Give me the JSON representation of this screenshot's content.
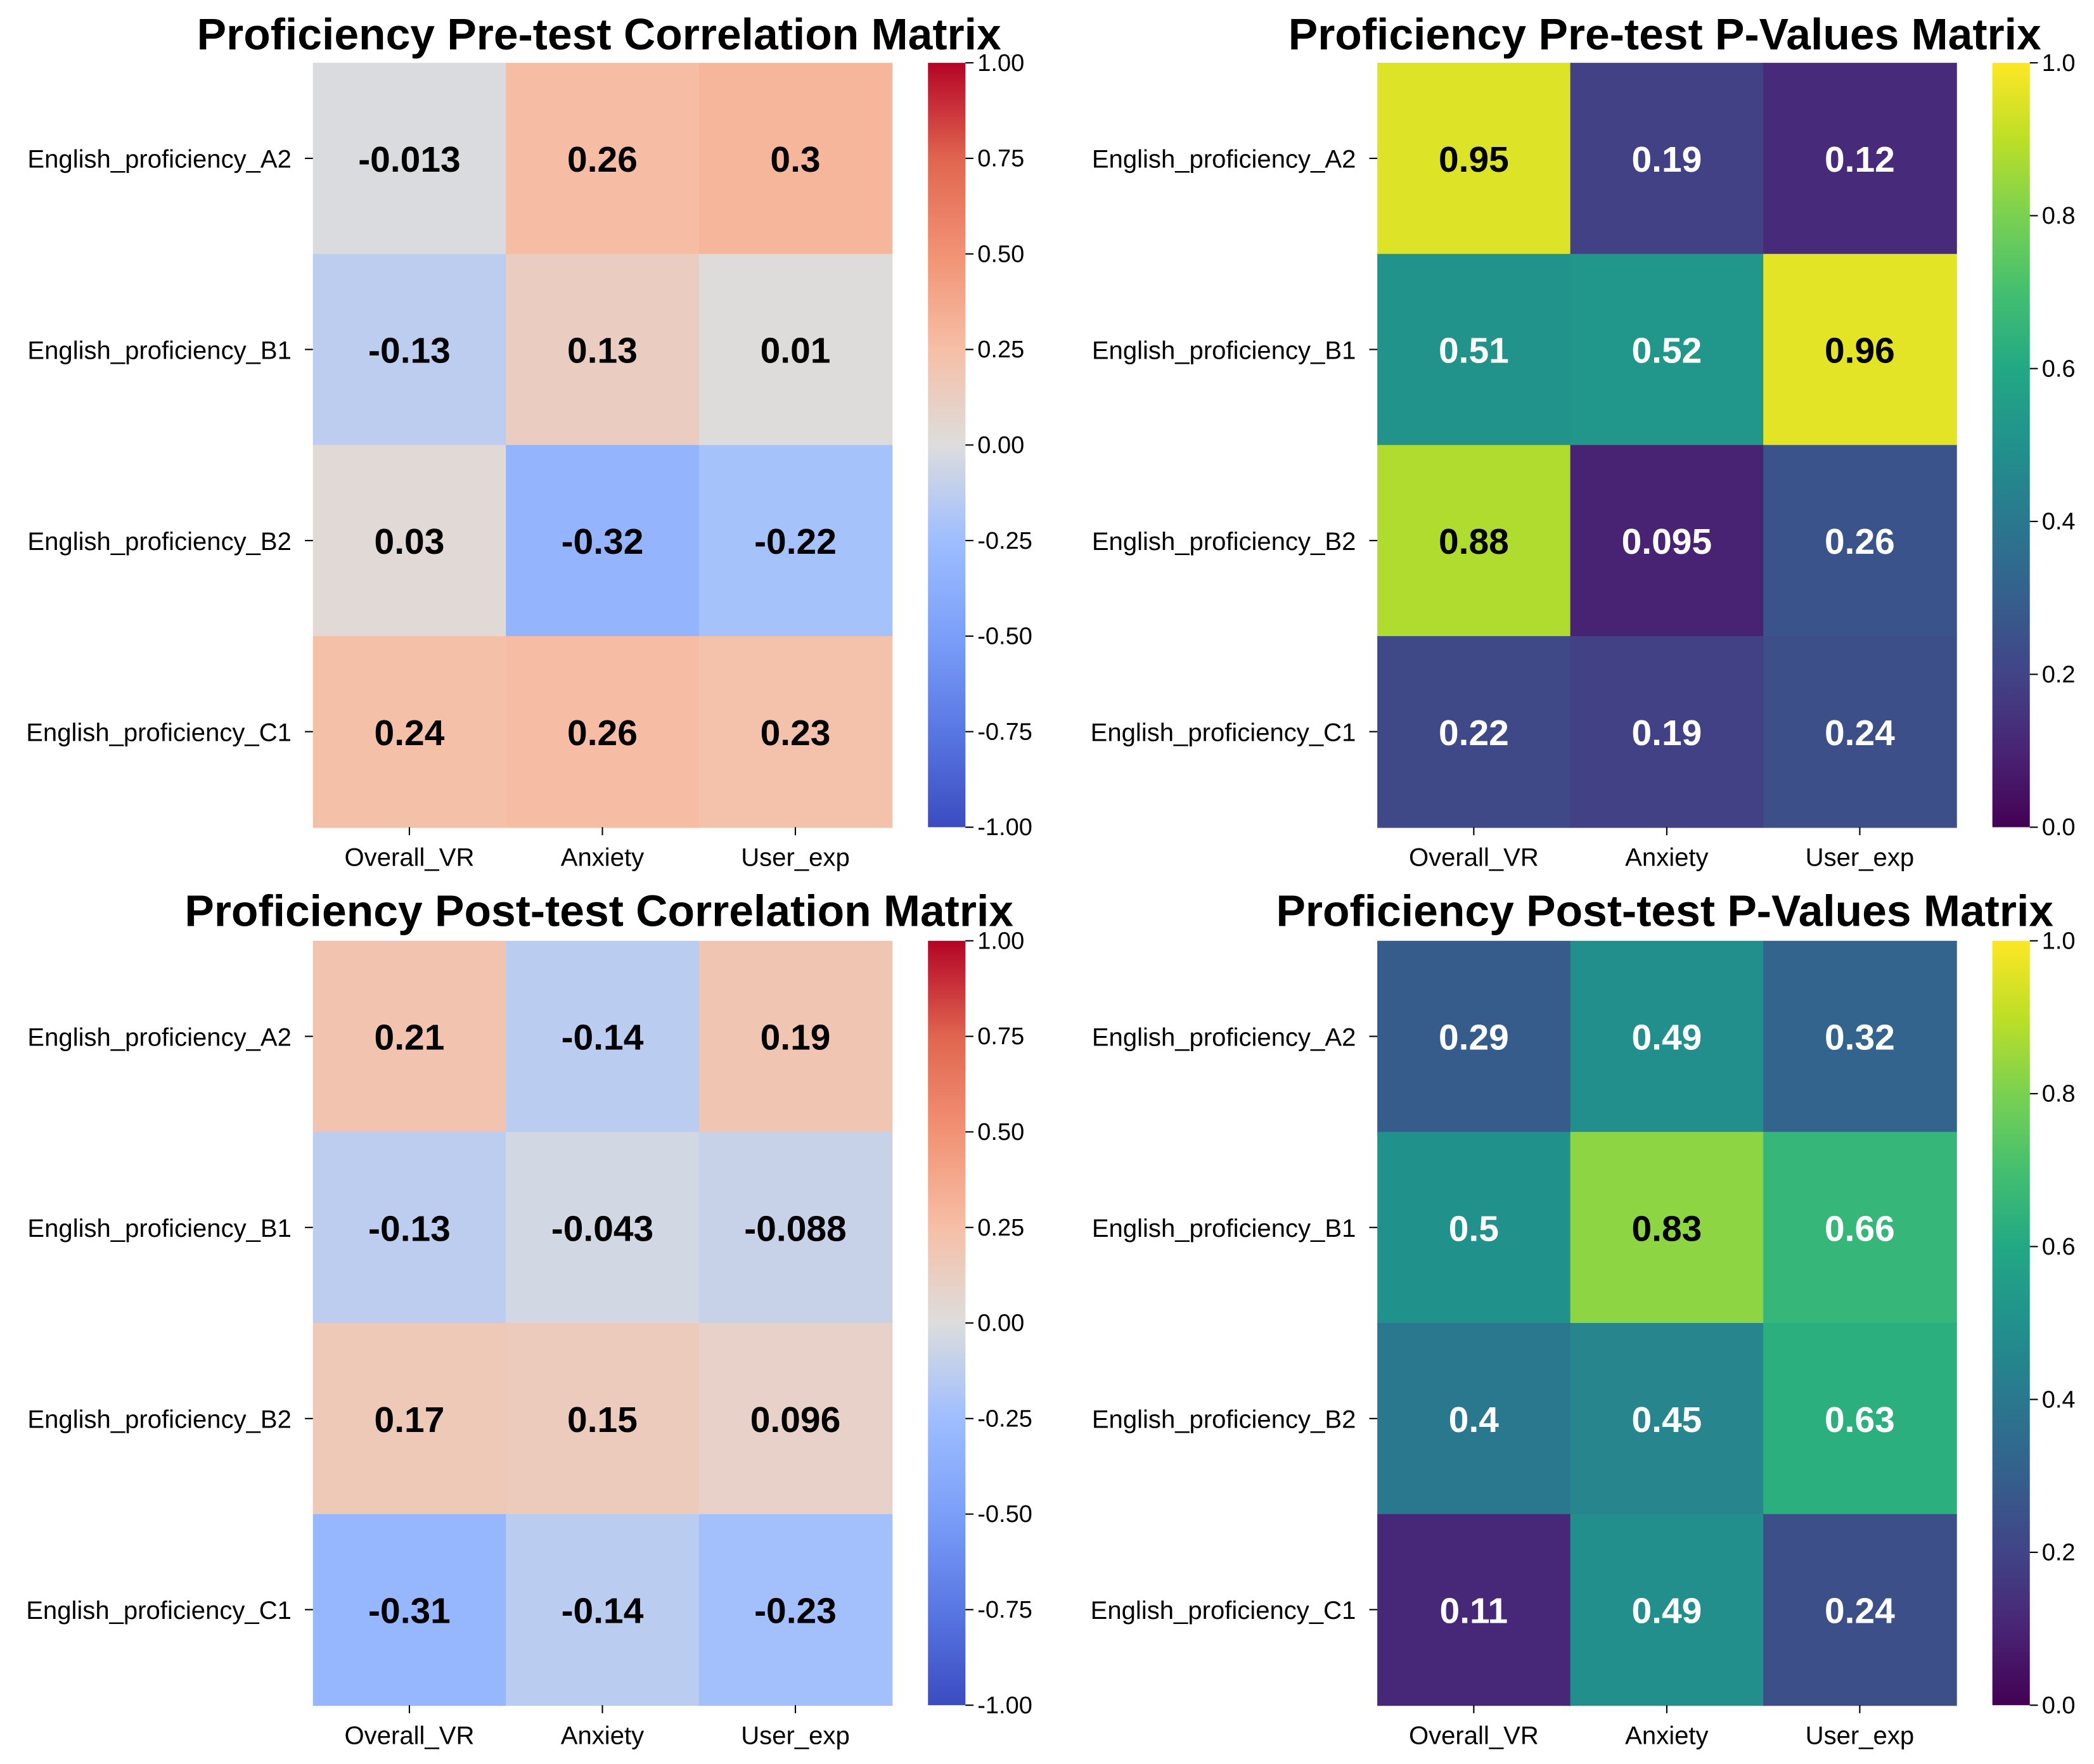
{
  "chart_data": [
    {
      "type": "heatmap",
      "title": "Proficiency Pre-test Correlation Matrix",
      "rows": [
        "English_proficiency_A2",
        "English_proficiency_B1",
        "English_proficiency_B2",
        "English_proficiency_C1"
      ],
      "columns": [
        "Overall_VR",
        "Anxiety",
        "User_exp"
      ],
      "values": [
        [
          -0.013,
          0.26,
          0.3
        ],
        [
          -0.13,
          0.13,
          0.01
        ],
        [
          0.03,
          -0.32,
          -0.22
        ],
        [
          0.24,
          0.26,
          0.23
        ]
      ],
      "labels": [
        [
          "-0.013",
          "0.26",
          "0.3"
        ],
        [
          "-0.13",
          "0.13",
          "0.01"
        ],
        [
          "0.03",
          "-0.32",
          "-0.22"
        ],
        [
          "0.24",
          "0.26",
          "0.23"
        ]
      ],
      "colormap": "coolwarm",
      "vmin": -1,
      "vmax": 1,
      "colorbar_ticks": [
        "1.00",
        "0.75",
        "0.50",
        "0.25",
        "0.00",
        "-0.25",
        "-0.50",
        "-0.75",
        "-1.00"
      ]
    },
    {
      "type": "heatmap",
      "title": "Proficiency Pre-test P-Values Matrix",
      "rows": [
        "English_proficiency_A2",
        "English_proficiency_B1",
        "English_proficiency_B2",
        "English_proficiency_C1"
      ],
      "columns": [
        "Overall_VR",
        "Anxiety",
        "User_exp"
      ],
      "values": [
        [
          0.95,
          0.19,
          0.12
        ],
        [
          0.51,
          0.52,
          0.96
        ],
        [
          0.88,
          0.095,
          0.26
        ],
        [
          0.22,
          0.19,
          0.24
        ]
      ],
      "labels": [
        [
          "0.95",
          "0.19",
          "0.12"
        ],
        [
          "0.51",
          "0.52",
          "0.96"
        ],
        [
          "0.88",
          "0.095",
          "0.26"
        ],
        [
          "0.22",
          "0.19",
          "0.24"
        ]
      ],
      "colormap": "viridis",
      "vmin": 0,
      "vmax": 1,
      "colorbar_ticks": [
        "1.0",
        "0.8",
        "0.6",
        "0.4",
        "0.2",
        "0.0"
      ]
    },
    {
      "type": "heatmap",
      "title": "Proficiency Post-test Correlation Matrix",
      "rows": [
        "English_proficiency_A2",
        "English_proficiency_B1",
        "English_proficiency_B2",
        "English_proficiency_C1"
      ],
      "columns": [
        "Overall_VR",
        "Anxiety",
        "User_exp"
      ],
      "values": [
        [
          0.21,
          -0.14,
          0.19
        ],
        [
          -0.13,
          -0.043,
          -0.088
        ],
        [
          0.17,
          0.15,
          0.096
        ],
        [
          -0.31,
          -0.14,
          -0.23
        ]
      ],
      "labels": [
        [
          "0.21",
          "-0.14",
          "0.19"
        ],
        [
          "-0.13",
          "-0.043",
          "-0.088"
        ],
        [
          "0.17",
          "0.15",
          "0.096"
        ],
        [
          "-0.31",
          "-0.14",
          "-0.23"
        ]
      ],
      "colormap": "coolwarm",
      "vmin": -1,
      "vmax": 1,
      "colorbar_ticks": [
        "1.00",
        "0.75",
        "0.50",
        "0.25",
        "0.00",
        "-0.25",
        "-0.50",
        "-0.75",
        "-1.00"
      ]
    },
    {
      "type": "heatmap",
      "title": "Proficiency Post-test P-Values Matrix",
      "rows": [
        "English_proficiency_A2",
        "English_proficiency_B1",
        "English_proficiency_B2",
        "English_proficiency_C1"
      ],
      "columns": [
        "Overall_VR",
        "Anxiety",
        "User_exp"
      ],
      "values": [
        [
          0.29,
          0.49,
          0.32
        ],
        [
          0.5,
          0.83,
          0.66
        ],
        [
          0.4,
          0.45,
          0.63
        ],
        [
          0.11,
          0.49,
          0.24
        ]
      ],
      "labels": [
        [
          "0.29",
          "0.49",
          "0.32"
        ],
        [
          "0.5",
          "0.83",
          "0.66"
        ],
        [
          "0.4",
          "0.45",
          "0.63"
        ],
        [
          "0.11",
          "0.49",
          "0.24"
        ]
      ],
      "colormap": "viridis",
      "vmin": 0,
      "vmax": 1,
      "colorbar_ticks": [
        "1.0",
        "0.8",
        "0.6",
        "0.4",
        "0.2",
        "0.0"
      ]
    }
  ]
}
